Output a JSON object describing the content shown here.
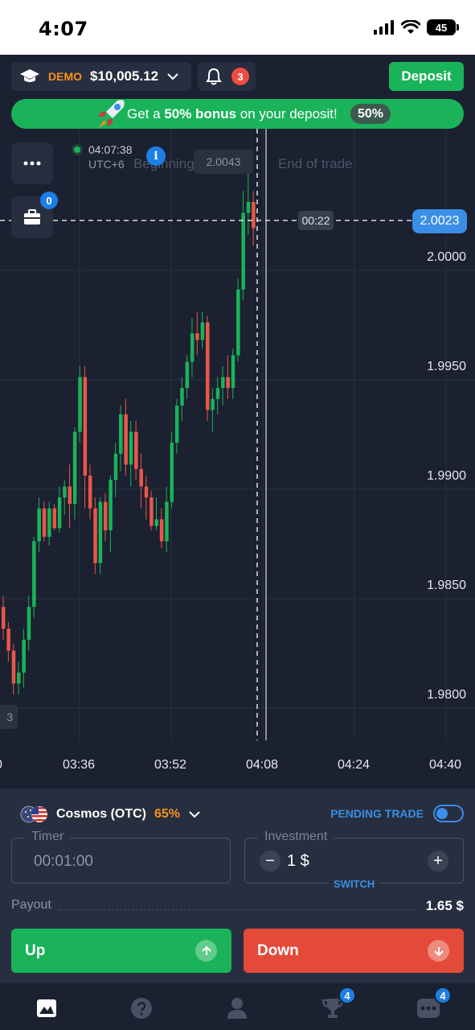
{
  "status_bar": {
    "time": "4:07",
    "battery": "45"
  },
  "header": {
    "account_mode": "DEMO",
    "balance": "$10,005.12",
    "notifications_count": "3",
    "deposit_label": "Deposit"
  },
  "bonus": {
    "text_prefix": "Get a ",
    "text_bold": "50% bonus",
    "text_suffix": " on your deposit!",
    "badge": "50%"
  },
  "chart": {
    "clock_time": "04:07:38",
    "timezone": "UTC+6",
    "beginning_label": "Beginning of trade",
    "end_label": "End of trade",
    "hover_price": "2.0043",
    "countdown": "00:22",
    "current_price": "2.0023",
    "portfolio_count": "0",
    "left_edge_tag": "3",
    "y_ticks": [
      "2.0000",
      "1.9950",
      "1.9900",
      "1.9850",
      "1.9800"
    ],
    "x_ticks": [
      "0",
      "03:36",
      "03:52",
      "04:08",
      "04:24",
      "04:40"
    ]
  },
  "chart_data": {
    "type": "candlestick",
    "y_ticks": [
      2.0,
      1.995,
      1.99,
      1.985,
      1.98
    ],
    "ylim": [
      1.978,
      2.0065
    ],
    "x_ticks": [
      "03:36",
      "03:52",
      "04:08",
      "04:24",
      "04:40"
    ],
    "current_price": 2.0023,
    "colors": {
      "up": "#1ab35a",
      "down": "#e8574a"
    },
    "candles": [
      {
        "o": 1.984,
        "h": 1.9845,
        "l": 1.9825,
        "c": 1.983
      },
      {
        "o": 1.983,
        "h": 1.9833,
        "l": 1.9815,
        "c": 1.982
      },
      {
        "o": 1.982,
        "h": 1.9823,
        "l": 1.98,
        "c": 1.9805
      },
      {
        "o": 1.9805,
        "h": 1.9815,
        "l": 1.98,
        "c": 1.981
      },
      {
        "o": 1.981,
        "h": 1.983,
        "l": 1.9803,
        "c": 1.9825
      },
      {
        "o": 1.9825,
        "h": 1.9845,
        "l": 1.982,
        "c": 1.984
      },
      {
        "o": 1.984,
        "h": 1.9872,
        "l": 1.9835,
        "c": 1.987
      },
      {
        "o": 1.987,
        "h": 1.989,
        "l": 1.9865,
        "c": 1.9885
      },
      {
        "o": 1.9885,
        "h": 1.9888,
        "l": 1.987,
        "c": 1.9872
      },
      {
        "o": 1.9872,
        "h": 1.9888,
        "l": 1.9868,
        "c": 1.9885
      },
      {
        "o": 1.9885,
        "h": 1.9887,
        "l": 1.9875,
        "c": 1.9876
      },
      {
        "o": 1.9876,
        "h": 1.9895,
        "l": 1.9874,
        "c": 1.989
      },
      {
        "o": 1.989,
        "h": 1.9898,
        "l": 1.9882,
        "c": 1.9895
      },
      {
        "o": 1.9895,
        "h": 1.9905,
        "l": 1.9876,
        "c": 1.9887
      },
      {
        "o": 1.9887,
        "h": 1.9922,
        "l": 1.988,
        "c": 1.992
      },
      {
        "o": 1.992,
        "h": 1.995,
        "l": 1.9915,
        "c": 1.9945
      },
      {
        "o": 1.9945,
        "h": 1.995,
        "l": 1.9885,
        "c": 1.99
      },
      {
        "o": 1.99,
        "h": 1.9905,
        "l": 1.988,
        "c": 1.9885
      },
      {
        "o": 1.9885,
        "h": 1.989,
        "l": 1.9855,
        "c": 1.986
      },
      {
        "o": 1.986,
        "h": 1.989,
        "l": 1.9855,
        "c": 1.9888
      },
      {
        "o": 1.9888,
        "h": 1.9892,
        "l": 1.987,
        "c": 1.9875
      },
      {
        "o": 1.9875,
        "h": 1.99,
        "l": 1.9865,
        "c": 1.9898
      },
      {
        "o": 1.9898,
        "h": 1.9915,
        "l": 1.989,
        "c": 1.991
      },
      {
        "o": 1.991,
        "h": 1.9932,
        "l": 1.9902,
        "c": 1.9928
      },
      {
        "o": 1.9928,
        "h": 1.9935,
        "l": 1.99,
        "c": 1.9905
      },
      {
        "o": 1.9905,
        "h": 1.9925,
        "l": 1.9895,
        "c": 1.992
      },
      {
        "o": 1.992,
        "h": 1.9925,
        "l": 1.9898,
        "c": 1.9903
      },
      {
        "o": 1.9903,
        "h": 1.991,
        "l": 1.9885,
        "c": 1.9895
      },
      {
        "o": 1.9895,
        "h": 1.99,
        "l": 1.988,
        "c": 1.989
      },
      {
        "o": 1.989,
        "h": 1.9893,
        "l": 1.9875,
        "c": 1.9877
      },
      {
        "o": 1.9877,
        "h": 1.989,
        "l": 1.9875,
        "c": 1.988
      },
      {
        "o": 1.988,
        "h": 1.9885,
        "l": 1.9867,
        "c": 1.987
      },
      {
        "o": 1.987,
        "h": 1.9895,
        "l": 1.9865,
        "c": 1.9888
      },
      {
        "o": 1.9888,
        "h": 1.992,
        "l": 1.9885,
        "c": 1.9915
      },
      {
        "o": 1.9915,
        "h": 1.9935,
        "l": 1.991,
        "c": 1.9932
      },
      {
        "o": 1.9932,
        "h": 1.9945,
        "l": 1.9925,
        "c": 1.994
      },
      {
        "o": 1.994,
        "h": 1.9955,
        "l": 1.9935,
        "c": 1.9952
      },
      {
        "o": 1.9952,
        "h": 1.9972,
        "l": 1.9945,
        "c": 1.9965
      },
      {
        "o": 1.9965,
        "h": 1.9975,
        "l": 1.9955,
        "c": 1.9962
      },
      {
        "o": 1.9962,
        "h": 1.9975,
        "l": 1.9958,
        "c": 1.997
      },
      {
        "o": 1.997,
        "h": 1.9973,
        "l": 1.9925,
        "c": 1.993
      },
      {
        "o": 1.993,
        "h": 1.994,
        "l": 1.992,
        "c": 1.9935
      },
      {
        "o": 1.9935,
        "h": 1.9945,
        "l": 1.9928,
        "c": 1.994
      },
      {
        "o": 1.994,
        "h": 1.995,
        "l": 1.9932,
        "c": 1.9945
      },
      {
        "o": 1.9945,
        "h": 1.9955,
        "l": 1.9935,
        "c": 1.994
      },
      {
        "o": 1.994,
        "h": 1.9958,
        "l": 1.9935,
        "c": 1.9955
      },
      {
        "o": 1.9955,
        "h": 1.999,
        "l": 1.9952,
        "c": 1.9985
      },
      {
        "o": 1.9985,
        "h": 2.003,
        "l": 1.998,
        "c": 2.002
      },
      {
        "o": 2.002,
        "h": 2.004,
        "l": 2.001,
        "c": 2.0025
      },
      {
        "o": 2.0025,
        "h": 2.003,
        "l": 2.0005,
        "c": 2.0013
      }
    ]
  },
  "panel": {
    "asset_name": "Cosmos (OTC)",
    "asset_payout_pct": "65%",
    "pending_trade_label": "PENDING TRADE",
    "timer_label": "Timer",
    "timer_value": "00:01:00",
    "investment_label": "Investment",
    "investment_value": "1 $",
    "switch_label": "SWITCH",
    "minus": "−",
    "plus": "+",
    "payout_label": "Payout",
    "payout_value": "1.65 $",
    "up_label": "Up",
    "down_label": "Down"
  },
  "nav": {
    "trophy_badge": "4",
    "more_badge": "4"
  }
}
